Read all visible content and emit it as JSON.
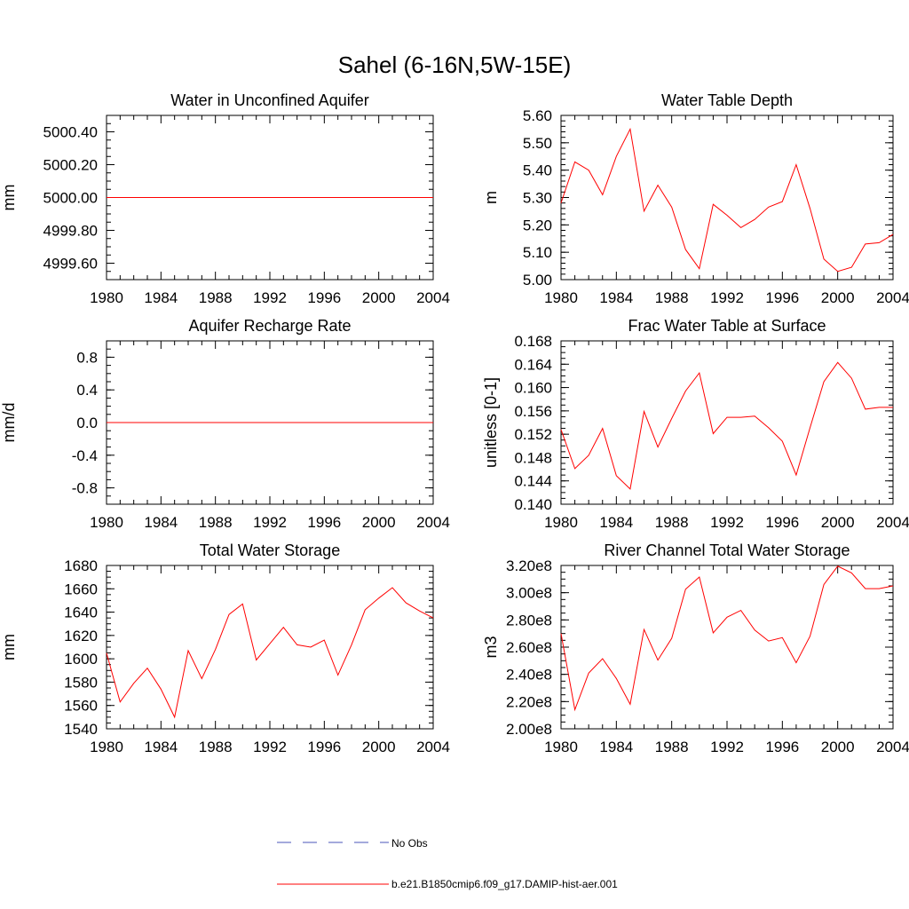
{
  "title": "Sahel (6-16N,5W-15E)",
  "legend": {
    "items": [
      {
        "label": "No Obs",
        "color": "#4a56b8",
        "style": "dashed"
      },
      {
        "label": "b.e21.B1850cmip6.f09_g17.DAMIP-hist-aer.001",
        "color": "#ff0000",
        "style": "solid"
      }
    ]
  },
  "colors": {
    "series": "#ff0000",
    "obs": "#4a56b8",
    "axis": "#000000"
  },
  "chart_data": [
    {
      "type": "line",
      "title": "Water in Unconfined Aquifer",
      "ylabel": "mm",
      "xlim": [
        1980,
        2004
      ],
      "ylim": [
        4999.5,
        5000.5
      ],
      "yticks": [
        4999.6,
        4999.8,
        5000.0,
        5000.2,
        5000.4
      ],
      "ytick_labels": [
        "4999.60",
        "4999.80",
        "5000.00",
        "5000.20",
        "5000.40"
      ],
      "yminor": 0.05,
      "xticks": [
        1980,
        1984,
        1988,
        1992,
        1996,
        2000,
        2004
      ],
      "xtick_labels": [
        "1980",
        "1984",
        "1988",
        "1992",
        "1996",
        "2000",
        "2004"
      ],
      "series": [
        {
          "x": [
            1980,
            1981,
            1982,
            1983,
            1984,
            1985,
            1986,
            1987,
            1988,
            1989,
            1990,
            1991,
            1992,
            1993,
            1994,
            1995,
            1996,
            1997,
            1998,
            1999,
            2000,
            2001,
            2002,
            2003,
            2004
          ],
          "y": [
            5000,
            5000,
            5000,
            5000,
            5000,
            5000,
            5000,
            5000,
            5000,
            5000,
            5000,
            5000,
            5000,
            5000,
            5000,
            5000,
            5000,
            5000,
            5000,
            5000,
            5000,
            5000,
            5000,
            5000,
            5000
          ]
        }
      ]
    },
    {
      "type": "line",
      "title": "Water Table Depth",
      "ylabel": "m",
      "xlim": [
        1980,
        2004
      ],
      "ylim": [
        5.0,
        5.6
      ],
      "yticks": [
        5.0,
        5.1,
        5.2,
        5.3,
        5.4,
        5.5,
        5.6
      ],
      "ytick_labels": [
        "5.00",
        "5.10",
        "5.20",
        "5.30",
        "5.40",
        "5.50",
        "5.60"
      ],
      "yminor": 0.02,
      "xticks": [
        1980,
        1984,
        1988,
        1992,
        1996,
        2000,
        2004
      ],
      "xtick_labels": [
        "1980",
        "1984",
        "1988",
        "1992",
        "1996",
        "2000",
        "2004"
      ],
      "series": [
        {
          "x": [
            1980,
            1981,
            1982,
            1983,
            1984,
            1985,
            1986,
            1987,
            1988,
            1989,
            1990,
            1991,
            1992,
            1993,
            1994,
            1995,
            1996,
            1997,
            1998,
            1999,
            2000,
            2001,
            2002,
            2003,
            2004
          ],
          "y": [
            5.28,
            5.43,
            5.4,
            5.31,
            5.45,
            5.55,
            5.25,
            5.345,
            5.265,
            5.11,
            5.04,
            5.275,
            5.235,
            5.19,
            5.22,
            5.265,
            5.285,
            5.42,
            5.26,
            5.075,
            5.03,
            5.045,
            5.13,
            5.135,
            5.165
          ]
        }
      ]
    },
    {
      "type": "line",
      "title": "Aquifer Recharge Rate",
      "ylabel": "mm/d",
      "xlim": [
        1980,
        2004
      ],
      "ylim": [
        -1.0,
        1.0
      ],
      "yticks": [
        -0.8,
        -0.4,
        0.0,
        0.4,
        0.8
      ],
      "ytick_labels": [
        "-0.8",
        "-0.4",
        "0.0",
        "0.4",
        "0.8"
      ],
      "yminor": 0.1,
      "xticks": [
        1980,
        1984,
        1988,
        1992,
        1996,
        2000,
        2004
      ],
      "xtick_labels": [
        "1980",
        "1984",
        "1988",
        "1992",
        "1996",
        "2000",
        "2004"
      ],
      "series": [
        {
          "x": [
            1980,
            1981,
            1982,
            1983,
            1984,
            1985,
            1986,
            1987,
            1988,
            1989,
            1990,
            1991,
            1992,
            1993,
            1994,
            1995,
            1996,
            1997,
            1998,
            1999,
            2000,
            2001,
            2002,
            2003,
            2004
          ],
          "y": [
            0,
            0,
            0,
            0,
            0,
            0,
            0,
            0,
            0,
            0,
            0,
            0,
            0,
            0,
            0,
            0,
            0,
            0,
            0,
            0,
            0,
            0,
            0,
            0,
            0
          ]
        }
      ]
    },
    {
      "type": "line",
      "title": "Frac Water Table at Surface",
      "ylabel": "unitless [0-1]",
      "xlim": [
        1980,
        2004
      ],
      "ylim": [
        0.14,
        0.168
      ],
      "yticks": [
        0.14,
        0.144,
        0.148,
        0.152,
        0.156,
        0.16,
        0.164,
        0.168
      ],
      "ytick_labels": [
        "0.140",
        "0.144",
        "0.148",
        "0.152",
        "0.156",
        "0.160",
        "0.164",
        "0.168"
      ],
      "yminor": 0.001,
      "xticks": [
        1980,
        1984,
        1988,
        1992,
        1996,
        2000,
        2004
      ],
      "xtick_labels": [
        "1980",
        "1984",
        "1988",
        "1992",
        "1996",
        "2000",
        "2004"
      ],
      "series": [
        {
          "x": [
            1980,
            1981,
            1982,
            1983,
            1984,
            1985,
            1986,
            1987,
            1988,
            1989,
            1990,
            1991,
            1992,
            1993,
            1994,
            1995,
            1996,
            1997,
            1998,
            1999,
            2000,
            2001,
            2002,
            2003,
            2004
          ],
          "y": [
            0.1528,
            0.1461,
            0.1484,
            0.153,
            0.1449,
            0.1426,
            0.1559,
            0.1498,
            0.1547,
            0.1594,
            0.1625,
            0.1521,
            0.1549,
            0.1549,
            0.1551,
            0.1531,
            0.1508,
            0.145,
            0.1531,
            0.161,
            0.1643,
            0.1616,
            0.1563,
            0.1566,
            0.1566
          ]
        }
      ]
    },
    {
      "type": "line",
      "title": "Total Water Storage",
      "ylabel": "mm",
      "xlim": [
        1980,
        2004
      ],
      "ylim": [
        1540,
        1680
      ],
      "yticks": [
        1540,
        1560,
        1580,
        1600,
        1620,
        1640,
        1660,
        1680
      ],
      "ytick_labels": [
        "1540",
        "1560",
        "1580",
        "1600",
        "1620",
        "1640",
        "1660",
        "1680"
      ],
      "yminor": 5,
      "xticks": [
        1980,
        1984,
        1988,
        1992,
        1996,
        2000,
        2004
      ],
      "xtick_labels": [
        "1980",
        "1984",
        "1988",
        "1992",
        "1996",
        "2000",
        "2004"
      ],
      "series": [
        {
          "x": [
            1980,
            1981,
            1982,
            1983,
            1984,
            1985,
            1986,
            1987,
            1988,
            1989,
            1990,
            1991,
            1992,
            1993,
            1994,
            1995,
            1996,
            1997,
            1998,
            1999,
            2000,
            2001,
            2002,
            2003,
            2004
          ],
          "y": [
            1605,
            1563,
            1579,
            1592,
            1574,
            1550,
            1607,
            1583,
            1608,
            1638,
            1647,
            1599,
            1613,
            1627,
            1612,
            1610,
            1616,
            1586,
            1612,
            1642,
            1652,
            1661,
            1648,
            1641,
            1635
          ]
        }
      ]
    },
    {
      "type": "line",
      "title": "River Channel Total Water Storage",
      "ylabel": "m3",
      "xlim": [
        1980,
        2004
      ],
      "ylim": [
        200000000.0,
        320000000.0
      ],
      "yticks": [
        200000000.0,
        220000000.0,
        240000000.0,
        260000000.0,
        280000000.0,
        300000000.0,
        320000000.0
      ],
      "ytick_labels": [
        "2.00e8",
        "2.20e8",
        "2.40e8",
        "2.60e8",
        "2.80e8",
        "3.00e8",
        "3.20e8"
      ],
      "yminor": 5000000.0,
      "xticks": [
        1980,
        1984,
        1988,
        1992,
        1996,
        2000,
        2004
      ],
      "xtick_labels": [
        "1980",
        "1984",
        "1988",
        "1992",
        "1996",
        "2000",
        "2004"
      ],
      "series": [
        {
          "x": [
            1980,
            1981,
            1982,
            1983,
            1984,
            1985,
            1986,
            1987,
            1988,
            1989,
            1990,
            1991,
            1992,
            1993,
            1994,
            1995,
            1996,
            1997,
            1998,
            1999,
            2000,
            2001,
            2002,
            2003,
            2004
          ],
          "y": [
            270000000.0,
            214000000.0,
            241000000.0,
            251500000.0,
            237000000.0,
            218000000.0,
            273000000.0,
            250500000.0,
            266500000.0,
            302500000.0,
            311500000.0,
            270500000.0,
            282000000.0,
            287000000.0,
            272500000.0,
            264500000.0,
            267000000.0,
            248500000.0,
            268000000.0,
            306000000.0,
            319500000.0,
            314500000.0,
            303000000.0,
            303000000.0,
            305000000.0
          ]
        }
      ]
    }
  ]
}
